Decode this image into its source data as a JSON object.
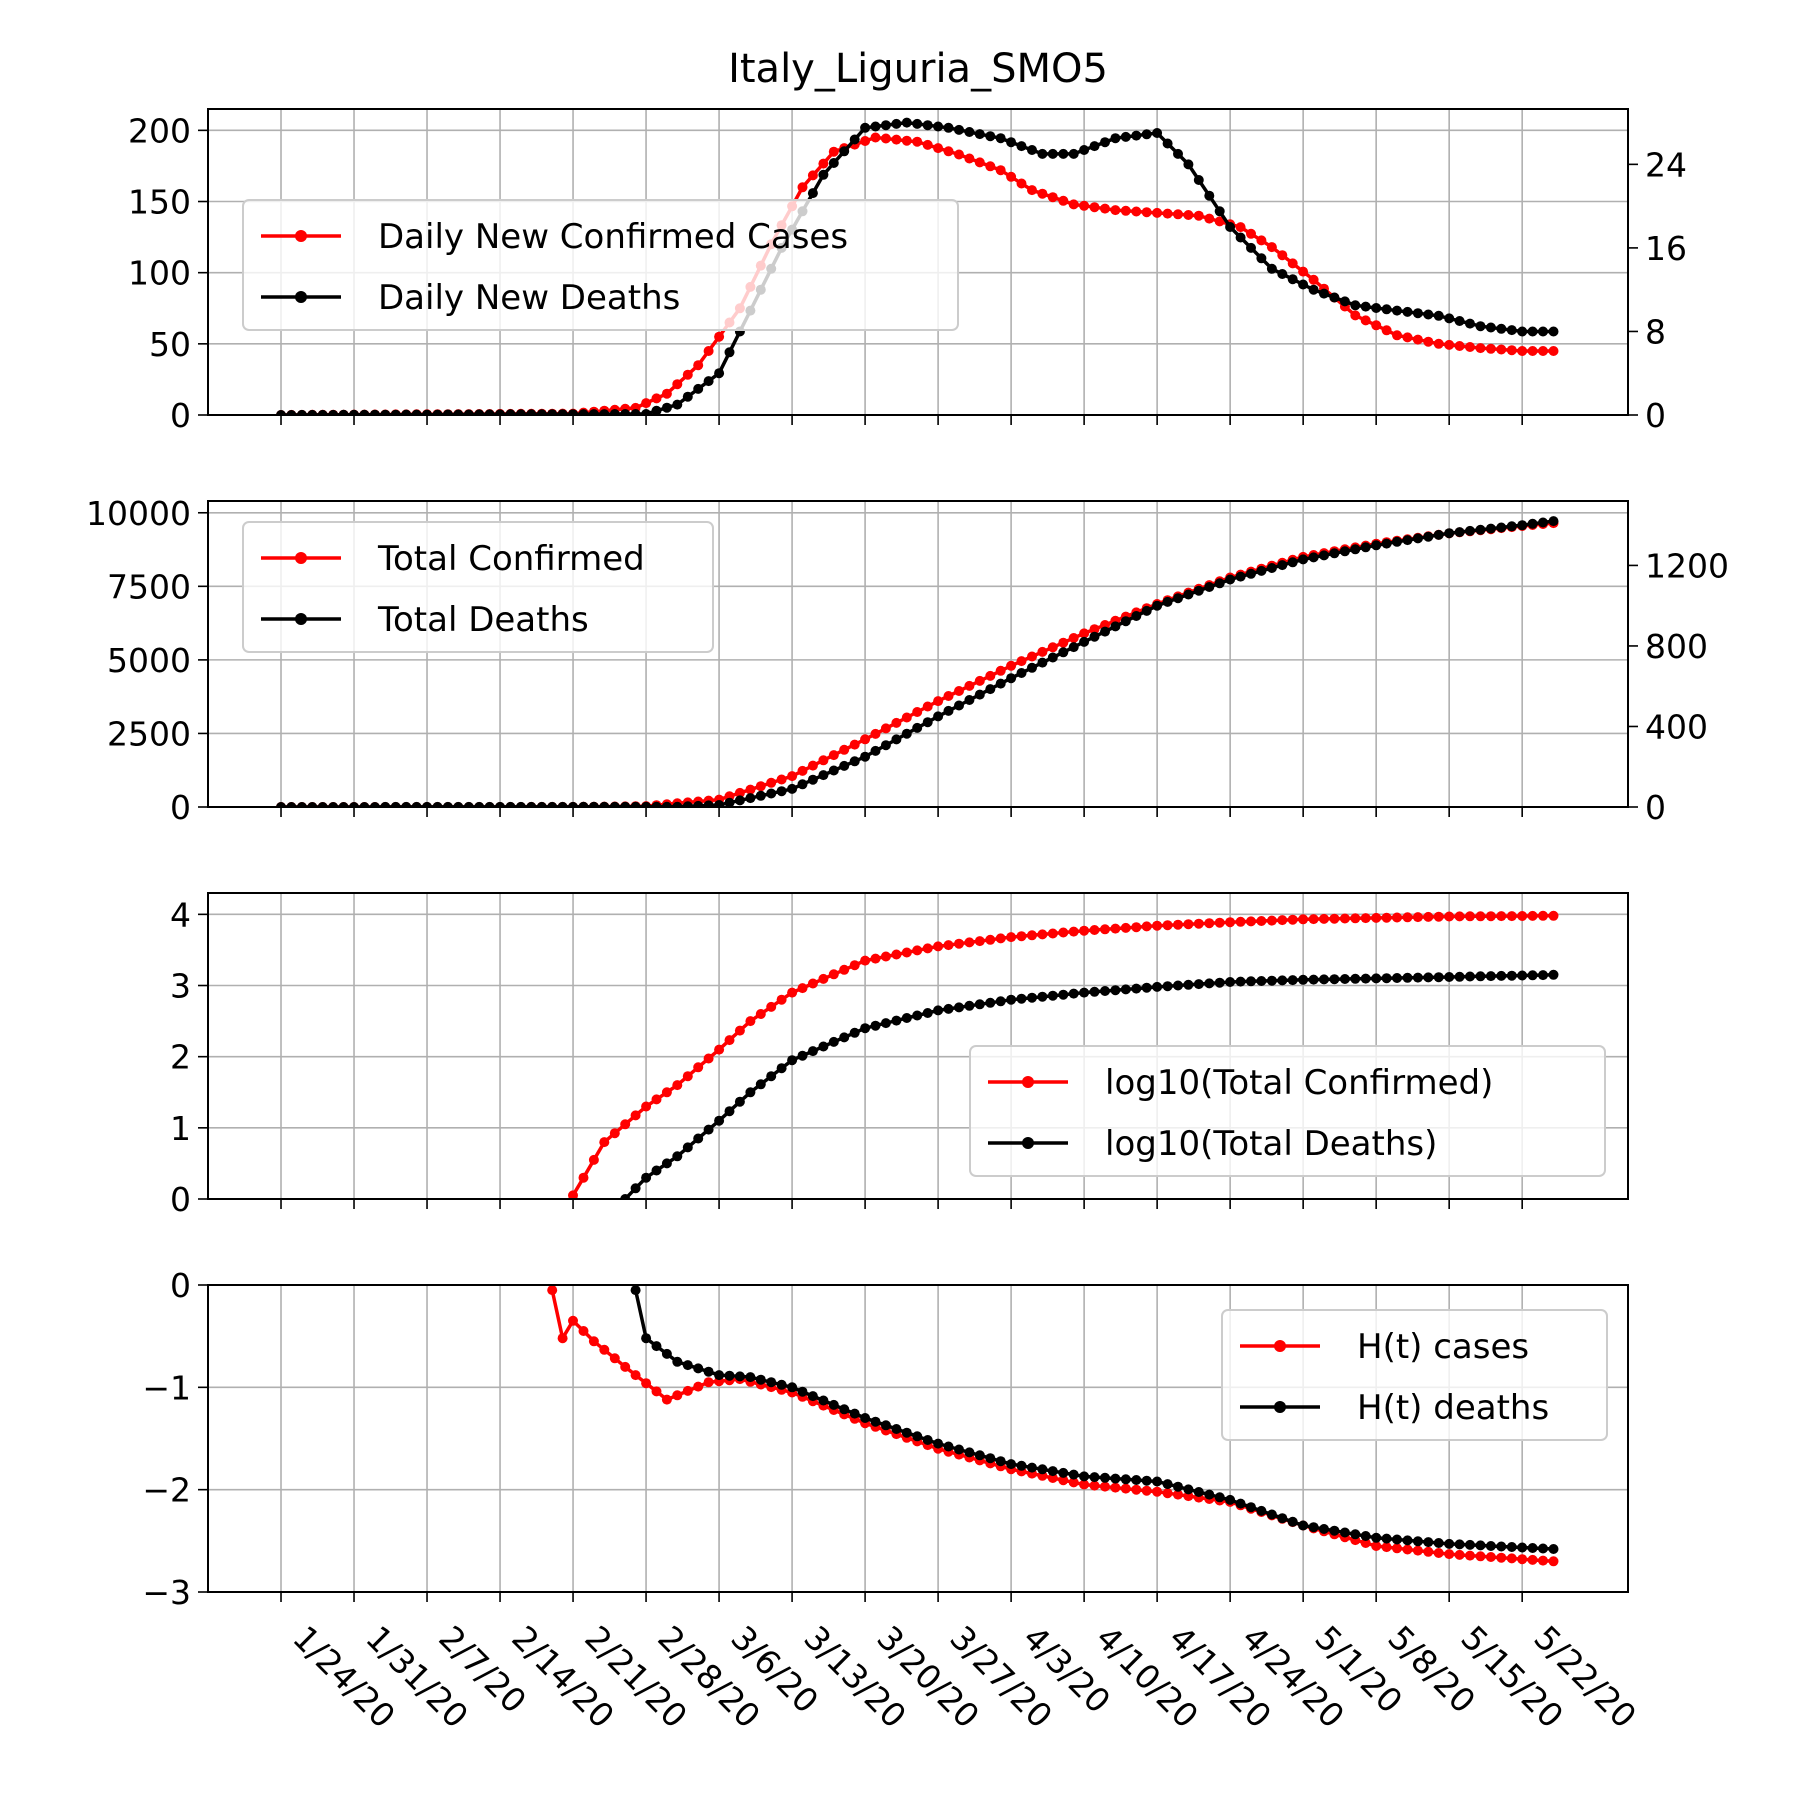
{
  "figure": {
    "title": "Italy_Liguria_SMO5"
  },
  "x_tick_labels": [
    "1/24/20",
    "1/31/20",
    "2/7/20",
    "2/14/20",
    "2/21/20",
    "2/28/20",
    "3/6/20",
    "3/13/20",
    "3/20/20",
    "3/27/20",
    "4/3/20",
    "4/10/20",
    "4/17/20",
    "4/24/20",
    "5/1/20",
    "5/8/20",
    "5/15/20",
    "5/22/20"
  ],
  "colors": {
    "cases": "#ff0000",
    "deaths": "#000000",
    "grid": "#b0b0b0"
  },
  "chart_data": [
    {
      "type": "line",
      "title": "Italy_Liguria_SMO5",
      "ylim": [
        0,
        215
      ],
      "y2lim": [
        0,
        29.3
      ],
      "yticks": [
        0,
        50,
        100,
        150,
        200
      ],
      "y2ticks": [
        0,
        8,
        16,
        24
      ],
      "grid": true,
      "legend": "upper-left",
      "x_range": [
        "1/24/20",
        "5/25/20"
      ],
      "series": [
        {
          "name": "Daily New Confirmed Cases",
          "axis": "left",
          "color": "#ff0000",
          "points": [
            [
              "1/24/20",
              0
            ],
            [
              "2/21/20",
              1
            ],
            [
              "2/27/20",
              5
            ],
            [
              "3/1/20",
              15
            ],
            [
              "3/4/20",
              35
            ],
            [
              "3/8/20",
              75
            ],
            [
              "3/11/20",
              120
            ],
            [
              "3/14/20",
              160
            ],
            [
              "3/17/20",
              185
            ],
            [
              "3/21/20",
              195
            ],
            [
              "3/25/20",
              192
            ],
            [
              "3/29/20",
              183
            ],
            [
              "4/2/20",
              172
            ],
            [
              "4/5/20",
              158
            ],
            [
              "4/9/20",
              148
            ],
            [
              "4/13/20",
              144
            ],
            [
              "4/17/20",
              142
            ],
            [
              "4/21/20",
              140
            ],
            [
              "4/25/20",
              132
            ],
            [
              "4/28/20",
              118
            ],
            [
              "5/2/20",
              95
            ],
            [
              "5/6/20",
              70
            ],
            [
              "5/10/20",
              56
            ],
            [
              "5/14/20",
              50
            ],
            [
              "5/18/20",
              47
            ],
            [
              "5/22/20",
              45
            ],
            [
              "5/25/20",
              45
            ]
          ]
        },
        {
          "name": "Daily New Deaths",
          "axis": "right",
          "color": "#000000",
          "points": [
            [
              "1/24/20",
              0
            ],
            [
              "2/28/20",
              0.1
            ],
            [
              "3/2/20",
              1
            ],
            [
              "3/6/20",
              4
            ],
            [
              "3/9/20",
              10
            ],
            [
              "3/12/20",
              16
            ],
            [
              "3/16/20",
              23
            ],
            [
              "3/20/20",
              27.5
            ],
            [
              "3/24/20",
              28
            ],
            [
              "3/28/20",
              27.5
            ],
            [
              "4/2/20",
              26.5
            ],
            [
              "4/6/20",
              25
            ],
            [
              "4/9/20",
              25
            ],
            [
              "4/13/20",
              26.5
            ],
            [
              "4/17/20",
              27
            ],
            [
              "4/20/20",
              24
            ],
            [
              "4/24/20",
              18
            ],
            [
              "4/28/20",
              14
            ],
            [
              "5/2/20",
              12
            ],
            [
              "5/6/20",
              10.5
            ],
            [
              "5/10/20",
              10
            ],
            [
              "5/14/20",
              9.5
            ],
            [
              "5/18/20",
              8.5
            ],
            [
              "5/22/20",
              8
            ],
            [
              "5/25/20",
              8
            ]
          ]
        }
      ]
    },
    {
      "type": "line",
      "ylim": [
        0,
        10400
      ],
      "y2lim": [
        0,
        1520
      ],
      "yticks": [
        0,
        2500,
        5000,
        7500,
        10000
      ],
      "y2ticks": [
        0,
        400,
        800,
        1200
      ],
      "grid": true,
      "legend": "upper-left",
      "x_range": [
        "1/24/20",
        "5/25/20"
      ],
      "series": [
        {
          "name": "Total Confirmed",
          "axis": "left",
          "color": "#ff0000",
          "points": [
            [
              "1/24/20",
              0
            ],
            [
              "2/21/20",
              2
            ],
            [
              "2/28/20",
              30
            ],
            [
              "3/6/20",
              250
            ],
            [
              "3/13/20",
              1050
            ],
            [
              "3/20/20",
              2300
            ],
            [
              "3/27/20",
              3600
            ],
            [
              "4/3/20",
              4800
            ],
            [
              "4/10/20",
              5900
            ],
            [
              "4/17/20",
              6900
            ],
            [
              "4/24/20",
              7800
            ],
            [
              "5/1/20",
              8500
            ],
            [
              "5/8/20",
              8950
            ],
            [
              "5/15/20",
              9300
            ],
            [
              "5/22/20",
              9550
            ],
            [
              "5/25/20",
              9650
            ]
          ]
        },
        {
          "name": "Total Deaths",
          "axis": "right",
          "color": "#000000",
          "points": [
            [
              "1/24/20",
              0
            ],
            [
              "3/2/20",
              1
            ],
            [
              "3/6/20",
              10
            ],
            [
              "3/13/20",
              90
            ],
            [
              "3/20/20",
              250
            ],
            [
              "3/27/20",
              450
            ],
            [
              "4/3/20",
              640
            ],
            [
              "4/10/20",
              820
            ],
            [
              "4/17/20",
              1000
            ],
            [
              "4/24/20",
              1130
            ],
            [
              "5/1/20",
              1230
            ],
            [
              "5/8/20",
              1300
            ],
            [
              "5/15/20",
              1360
            ],
            [
              "5/22/20",
              1400
            ],
            [
              "5/25/20",
              1420
            ]
          ]
        }
      ]
    },
    {
      "type": "line",
      "ylim": [
        0,
        4.3
      ],
      "yticks": [
        0,
        1,
        2,
        3,
        4
      ],
      "grid": true,
      "legend": "lower-right",
      "x_range": [
        "1/24/20",
        "5/25/20"
      ],
      "series": [
        {
          "name": "log10(Total Confirmed)",
          "color": "#ff0000",
          "points": [
            [
              "2/21/20",
              0.05
            ],
            [
              "2/24/20",
              0.8
            ],
            [
              "2/28/20",
              1.3
            ],
            [
              "3/2/20",
              1.6
            ],
            [
              "3/6/20",
              2.1
            ],
            [
              "3/9/20",
              2.5
            ],
            [
              "3/13/20",
              2.9
            ],
            [
              "3/20/20",
              3.35
            ],
            [
              "3/27/20",
              3.55
            ],
            [
              "4/3/20",
              3.68
            ],
            [
              "4/10/20",
              3.77
            ],
            [
              "4/17/20",
              3.84
            ],
            [
              "4/24/20",
              3.89
            ],
            [
              "5/1/20",
              3.93
            ],
            [
              "5/8/20",
              3.95
            ],
            [
              "5/15/20",
              3.97
            ],
            [
              "5/25/20",
              3.98
            ]
          ]
        },
        {
          "name": "log10(Total Deaths)",
          "color": "#000000",
          "points": [
            [
              "2/26/20",
              0
            ],
            [
              "2/28/20",
              0.3
            ],
            [
              "3/2/20",
              0.6
            ],
            [
              "3/6/20",
              1.1
            ],
            [
              "3/9/20",
              1.5
            ],
            [
              "3/13/20",
              1.95
            ],
            [
              "3/20/20",
              2.4
            ],
            [
              "3/27/20",
              2.65
            ],
            [
              "4/3/20",
              2.8
            ],
            [
              "4/10/20",
              2.9
            ],
            [
              "4/17/20",
              2.98
            ],
            [
              "4/24/20",
              3.05
            ],
            [
              "5/1/20",
              3.08
            ],
            [
              "5/8/20",
              3.1
            ],
            [
              "5/15/20",
              3.12
            ],
            [
              "5/25/20",
              3.15
            ]
          ]
        }
      ]
    },
    {
      "type": "line",
      "ylim": [
        -3,
        0
      ],
      "yticks": [
        -3,
        -2,
        -1,
        0
      ],
      "grid": true,
      "legend": "upper-right",
      "x_range": [
        "1/24/20",
        "5/25/20"
      ],
      "series": [
        {
          "name": "H(t) cases",
          "color": "#ff0000",
          "points": [
            [
              "2/19/20",
              -0.05
            ],
            [
              "2/20/20",
              -0.52
            ],
            [
              "2/21/20",
              -0.35
            ],
            [
              "2/23/20",
              -0.55
            ],
            [
              "2/26/20",
              -0.8
            ],
            [
              "3/1/20",
              -1.12
            ],
            [
              "3/5/20",
              -0.95
            ],
            [
              "3/8/20",
              -0.92
            ],
            [
              "3/13/20",
              -1.05
            ],
            [
              "3/20/20",
              -1.35
            ],
            [
              "3/27/20",
              -1.6
            ],
            [
              "4/3/20",
              -1.8
            ],
            [
              "4/10/20",
              -1.95
            ],
            [
              "4/17/20",
              -2.02
            ],
            [
              "4/24/20",
              -2.12
            ],
            [
              "5/1/20",
              -2.35
            ],
            [
              "5/8/20",
              -2.55
            ],
            [
              "5/15/20",
              -2.63
            ],
            [
              "5/25/20",
              -2.7
            ]
          ]
        },
        {
          "name": "H(t) deaths",
          "color": "#000000",
          "points": [
            [
              "2/27/20",
              -0.05
            ],
            [
              "2/28/20",
              -0.52
            ],
            [
              "3/2/20",
              -0.75
            ],
            [
              "3/6/20",
              -0.88
            ],
            [
              "3/9/20",
              -0.9
            ],
            [
              "3/13/20",
              -1.0
            ],
            [
              "3/20/20",
              -1.3
            ],
            [
              "3/27/20",
              -1.55
            ],
            [
              "4/3/20",
              -1.75
            ],
            [
              "4/10/20",
              -1.87
            ],
            [
              "4/17/20",
              -1.92
            ],
            [
              "4/24/20",
              -2.1
            ],
            [
              "5/1/20",
              -2.35
            ],
            [
              "5/8/20",
              -2.47
            ],
            [
              "5/15/20",
              -2.53
            ],
            [
              "5/25/20",
              -2.58
            ]
          ]
        }
      ]
    }
  ]
}
